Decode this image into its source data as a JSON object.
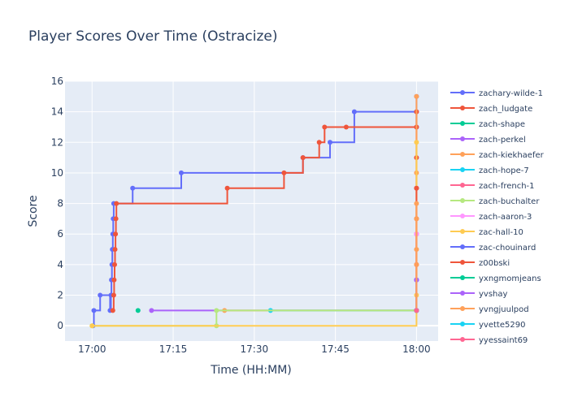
{
  "chart_data": {
    "type": "line",
    "line_shape": "step",
    "title": "Player Scores Over Time (Ostracize)",
    "xlabel": "Time (HH:MM)",
    "ylabel": "Score",
    "xlim": [
      "16:55",
      "18:04"
    ],
    "ylim": [
      -1,
      16
    ],
    "x_ticks": [
      "17:00",
      "17:15",
      "17:30",
      "17:45",
      "18:00"
    ],
    "y_ticks": [
      0,
      2,
      4,
      6,
      8,
      10,
      12,
      14,
      16
    ],
    "grid": true,
    "legend_position": "right",
    "plot_background": "#E5ECF6",
    "series": [
      {
        "name": "zachary-wilde-1",
        "color": "#636efa",
        "points": [
          [
            "17:00:10",
            0
          ],
          [
            "17:00:20",
            1
          ],
          [
            "17:01:30",
            2
          ],
          [
            "17:03:20",
            1
          ],
          [
            "17:03:30",
            2
          ],
          [
            "17:03:35",
            3
          ],
          [
            "17:03:40",
            4
          ],
          [
            "17:03:45",
            5
          ],
          [
            "17:03:50",
            6
          ],
          [
            "17:03:55",
            7
          ],
          [
            "17:04:00",
            8
          ],
          [
            "17:07:30",
            9
          ],
          [
            "17:16:30",
            10
          ],
          [
            "17:39:00",
            11
          ],
          [
            "17:44:00",
            12
          ],
          [
            "17:48:30",
            14
          ],
          [
            "18:00:00",
            14
          ],
          [
            "18:00:00",
            13
          ],
          [
            "18:00:00",
            15
          ]
        ]
      },
      {
        "name": "zach_ludgate",
        "color": "#EF553B",
        "points": [
          [
            "17:03:50",
            1
          ],
          [
            "17:04:00",
            2
          ],
          [
            "17:04:05",
            3
          ],
          [
            "17:04:10",
            4
          ],
          [
            "17:04:15",
            5
          ],
          [
            "17:04:20",
            6
          ],
          [
            "17:04:25",
            7
          ],
          [
            "17:04:30",
            8
          ],
          [
            "17:25:00",
            9
          ],
          [
            "17:35:30",
            10
          ],
          [
            "17:39:00",
            11
          ],
          [
            "17:42:00",
            12
          ],
          [
            "17:43:00",
            13
          ],
          [
            "17:47:00",
            13
          ],
          [
            "18:00:00",
            13
          ],
          [
            "18:00:00",
            1
          ],
          [
            "18:00:00",
            4
          ],
          [
            "18:00:00",
            7
          ],
          [
            "18:00:00",
            9
          ],
          [
            "18:00:00",
            11
          ],
          [
            "18:00:00",
            14
          ]
        ]
      },
      {
        "name": "zach-shape",
        "color": "#00cc96",
        "points": [
          [
            "17:08:30",
            1
          ]
        ]
      },
      {
        "name": "zach-perkel",
        "color": "#ab63fa",
        "points": [
          [
            "17:11:00",
            1
          ],
          [
            "18:00:00",
            1
          ],
          [
            "18:00:00",
            3
          ],
          [
            "18:00:00",
            6
          ]
        ]
      },
      {
        "name": "zach-kiekhaefer",
        "color": "#FFA15A",
        "points": [
          [
            "17:24:30",
            1
          ],
          [
            "18:00:00",
            1
          ],
          [
            "18:00:00",
            4
          ],
          [
            "18:00:00",
            7
          ],
          [
            "18:00:00",
            10
          ],
          [
            "18:00:00",
            15
          ]
        ]
      },
      {
        "name": "zach-hope-7",
        "color": "#19d3f3",
        "points": [
          [
            "17:33:00",
            1
          ],
          [
            "18:00:00",
            1
          ]
        ]
      },
      {
        "name": "zach-french-1",
        "color": "#FF6692",
        "points": [
          [
            "18:00:00",
            1
          ],
          [
            "18:00:00",
            6
          ]
        ]
      },
      {
        "name": "zach-buchalter",
        "color": "#B6E880",
        "points": [
          [
            "17:00:00",
            0
          ],
          [
            "17:23:00",
            0
          ],
          [
            "17:23:00",
            1
          ],
          [
            "18:00:00",
            1
          ]
        ]
      },
      {
        "name": "zach-aaron-3",
        "color": "#FF97FF",
        "points": [
          [
            "18:00:00",
            1
          ],
          [
            "18:00:00",
            6
          ]
        ]
      },
      {
        "name": "zac-hall-10",
        "color": "#FECB52",
        "points": [
          [
            "17:00:00",
            0
          ],
          [
            "18:00:00",
            2
          ],
          [
            "18:00:00",
            12
          ]
        ]
      },
      {
        "name": "zac-chouinard",
        "color": "#636efa",
        "points": [
          [
            "18:00:00",
            1
          ],
          [
            "18:00:00",
            3
          ]
        ]
      },
      {
        "name": "z00bski",
        "color": "#EF553B",
        "points": [
          [
            "18:00:00",
            1
          ],
          [
            "18:00:00",
            9
          ]
        ]
      },
      {
        "name": "yxngmomjeans",
        "color": "#00cc96",
        "points": [
          [
            "18:00:00",
            1
          ]
        ]
      },
      {
        "name": "yvshay",
        "color": "#ab63fa",
        "points": [
          [
            "18:00:00",
            1
          ],
          [
            "18:00:00",
            3
          ]
        ]
      },
      {
        "name": "yvngjuulpod",
        "color": "#FFA15A",
        "points": [
          [
            "18:00:00",
            1
          ],
          [
            "18:00:00",
            5
          ],
          [
            "18:00:00",
            8
          ]
        ]
      },
      {
        "name": "yvette5290",
        "color": "#19d3f3",
        "points": [
          [
            "18:00:00",
            1
          ]
        ]
      },
      {
        "name": "yyessaint69",
        "color": "#FF6692",
        "points": [
          [
            "18:00:00",
            1
          ]
        ]
      }
    ]
  }
}
